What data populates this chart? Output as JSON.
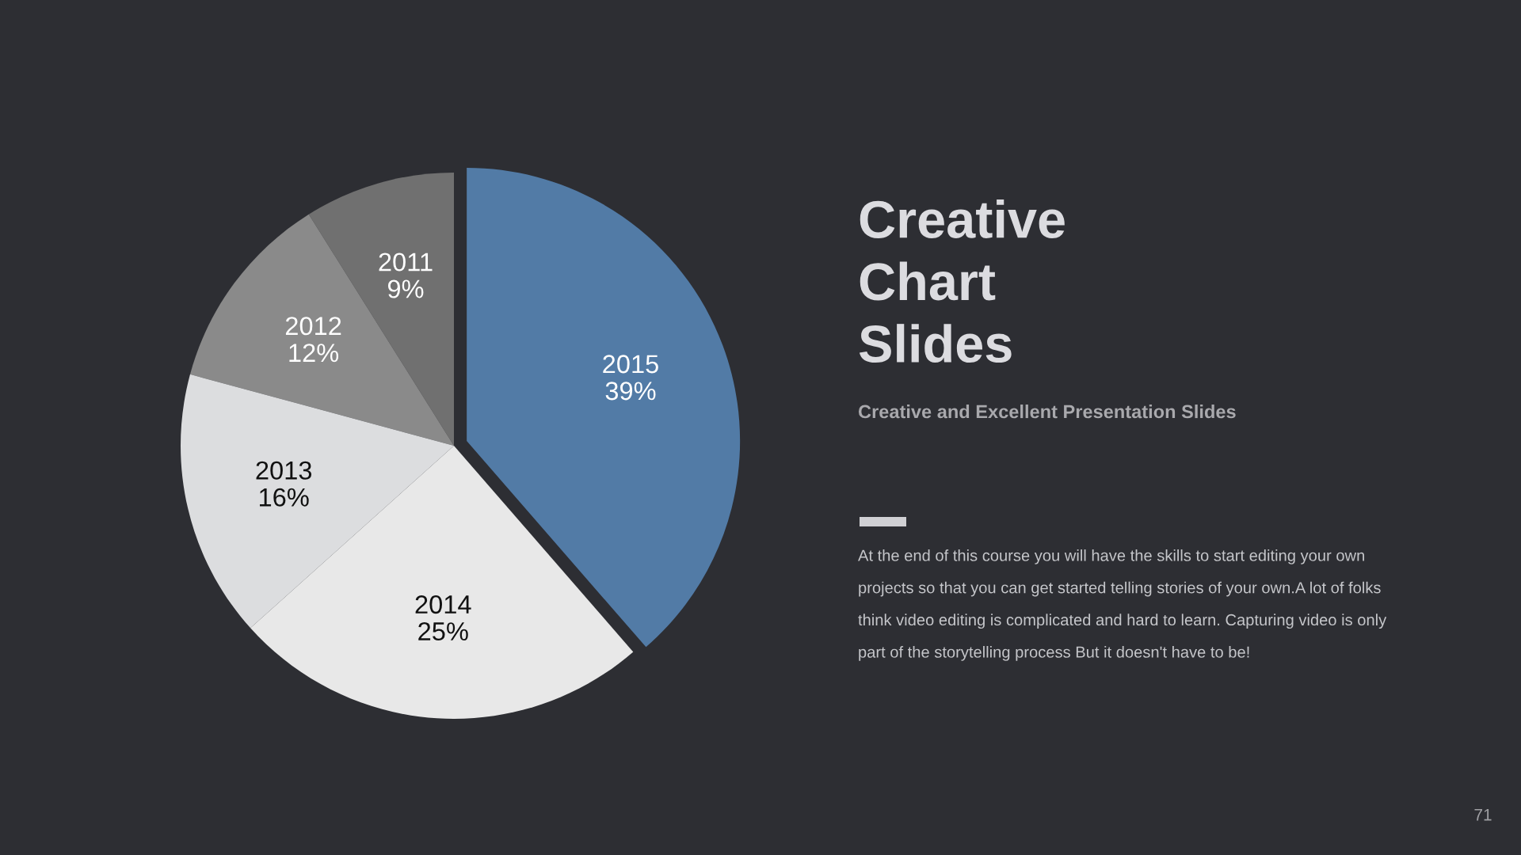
{
  "chart_data": {
    "type": "pie",
    "title": "Creative\nChart\nSlides",
    "subtitle": "Creative and Excellent Presentation Slides",
    "categories": [
      "2011",
      "2012",
      "2013",
      "2014",
      "2015"
    ],
    "values": [
      9,
      12,
      16,
      25,
      39
    ],
    "value_labels": [
      "9%",
      "12%",
      "16%",
      "25%",
      "39%"
    ],
    "colors": [
      "#707070",
      "#8a8a8a",
      "#dcdddf",
      "#e8e8e8",
      "#527ba6"
    ],
    "annotations": [
      "At the end of this course you will have the skills to start editing your own\nprojects so that you can get started telling stories of your own.A lot of folks\nthink video editing is complicated and hard to learn. Capturing video is only\npart of the storytelling process But it doesn't have to be!",
      "71"
    ]
  }
}
